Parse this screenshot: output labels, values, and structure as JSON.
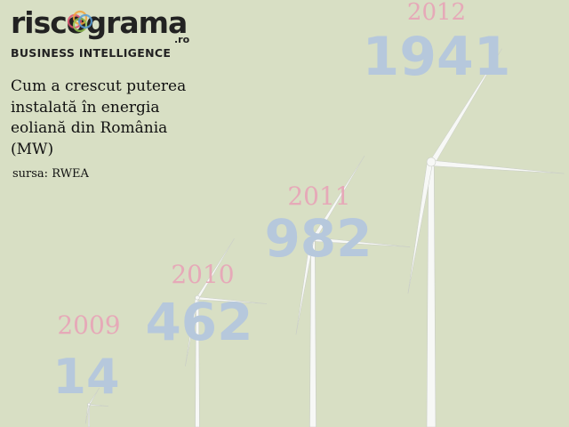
{
  "logo": {
    "wordmark": "riscograma",
    "domain_suffix": ".ro",
    "tagline": "BUSINESS INTELLIGENCE",
    "mark_colors": [
      "#e0506e",
      "#f2a43a",
      "#8fbf4f",
      "#5a9fd6"
    ]
  },
  "title": "Cum a crescut puterea instalată în energia eoliană din România (MW)",
  "source": "sursa: RWEA",
  "colors": {
    "background": "#d8dfc4",
    "year_label": "#e6a9b8",
    "value_label": "#b6c8dc",
    "turbine": "#f7f8f6",
    "turbine_shadow": "#c9cdc6"
  },
  "chart_data": {
    "type": "bar",
    "categories": [
      "2009",
      "2010",
      "2011",
      "2012"
    ],
    "values": [
      14,
      462,
      982,
      1941
    ],
    "value_labels": [
      "14",
      "462",
      "982",
      "1941"
    ],
    "title": "Cum a crescut puterea instalată în energia eoliană din România (MW)",
    "unit": "MW",
    "mark": "wind-turbine"
  }
}
